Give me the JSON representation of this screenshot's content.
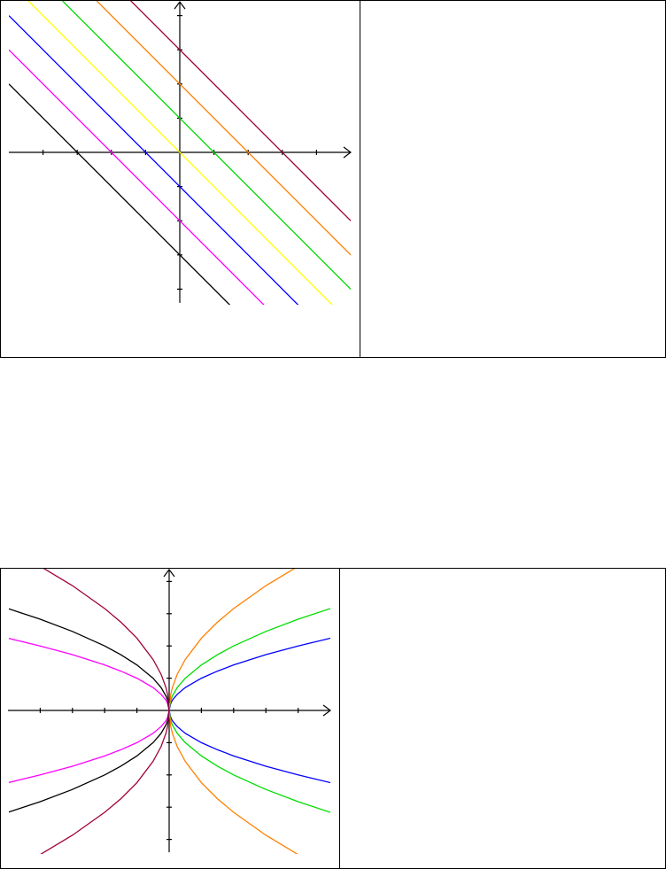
{
  "chart_data": [
    {
      "type": "line",
      "title": "",
      "xlabel": "",
      "ylabel": "",
      "xlim": [
        -5,
        5
      ],
      "ylim": [
        -4.4,
        4.4
      ],
      "xticks": [
        -4,
        -3,
        -2,
        -1,
        1,
        2,
        3,
        4
      ],
      "yticks": [
        -4,
        -3,
        -2,
        -1,
        1,
        2,
        3,
        4
      ],
      "grid": false,
      "axes_arrows": true,
      "series": [
        {
          "color": "#000000",
          "x": [
            -5,
            5
          ],
          "y": [
            2,
            -8
          ]
        },
        {
          "color": "#ff00ff",
          "x": [
            -5,
            5
          ],
          "y": [
            3,
            -7
          ]
        },
        {
          "color": "#0000ff",
          "x": [
            -5,
            5
          ],
          "y": [
            4,
            -6
          ]
        },
        {
          "color": "#ffff00",
          "x": [
            -5,
            5
          ],
          "y": [
            5,
            -5
          ]
        },
        {
          "color": "#00dd00",
          "x": [
            -5,
            5
          ],
          "y": [
            6,
            -4
          ]
        },
        {
          "color": "#ff8000",
          "x": [
            -5,
            5
          ],
          "y": [
            7,
            -3
          ]
        },
        {
          "color": "#a0003c",
          "x": [
            -5,
            5
          ],
          "y": [
            8,
            -2
          ]
        }
      ]
    },
    {
      "type": "line",
      "title": "",
      "xlabel": "",
      "ylabel": "",
      "xlim": [
        -5,
        5
      ],
      "ylim": [
        -4.4,
        4.4
      ],
      "xticks": [
        -4,
        -3,
        -2,
        -1,
        1,
        2,
        3,
        4
      ],
      "yticks": [
        -4,
        -3,
        -2,
        -1,
        1,
        2,
        3,
        4
      ],
      "grid": false,
      "axes_arrows": true,
      "series": [
        {
          "color": "#0000ff",
          "x": [
            0,
            0.05,
            0.1,
            0.25,
            0.5,
            1,
            1.5,
            2,
            3,
            4,
            5
          ],
          "y": [
            0,
            0.22,
            0.32,
            0.5,
            0.71,
            1,
            1.22,
            1.41,
            1.73,
            2,
            2.24
          ]
        },
        {
          "color": "#00dd00",
          "x": [
            0,
            0.05,
            0.1,
            0.25,
            0.5,
            1,
            1.5,
            2,
            3,
            4,
            5
          ],
          "y": [
            0,
            0.32,
            0.45,
            0.71,
            1,
            1.41,
            1.73,
            2,
            2.45,
            2.83,
            3.16
          ]
        },
        {
          "color": "#ff8000",
          "x": [
            0,
            0.05,
            0.1,
            0.25,
            0.5,
            1,
            1.5,
            2,
            3,
            4
          ],
          "y": [
            0,
            0.5,
            0.71,
            1.12,
            1.58,
            2.24,
            2.74,
            3.16,
            3.87,
            4.47
          ]
        },
        {
          "color": "#ff00ff",
          "x": [
            0,
            -0.05,
            -0.1,
            -0.25,
            -0.5,
            -1,
            -1.5,
            -2,
            -3,
            -4,
            -5
          ],
          "y": [
            0,
            0.22,
            0.32,
            0.5,
            0.71,
            1,
            1.22,
            1.41,
            1.73,
            2,
            2.24
          ]
        },
        {
          "color": "#000000",
          "x": [
            0,
            -0.05,
            -0.1,
            -0.25,
            -0.5,
            -1,
            -1.5,
            -2,
            -3,
            -4,
            -5
          ],
          "y": [
            0,
            0.32,
            0.45,
            0.71,
            1,
            1.41,
            1.73,
            2,
            2.45,
            2.83,
            3.16
          ]
        },
        {
          "color": "#a0003c",
          "x": [
            0,
            -0.05,
            -0.1,
            -0.25,
            -0.5,
            -1,
            -1.5,
            -2,
            -3,
            -4
          ],
          "y": [
            0,
            0.5,
            0.71,
            1.12,
            1.58,
            2.24,
            2.74,
            3.16,
            3.87,
            4.47
          ]
        },
        {
          "color": "#0000ff",
          "x": [
            0,
            0.05,
            0.1,
            0.25,
            0.5,
            1,
            1.5,
            2,
            3,
            4,
            5
          ],
          "y": [
            0,
            -0.22,
            -0.32,
            -0.5,
            -0.71,
            -1,
            -1.22,
            -1.41,
            -1.73,
            -2,
            -2.24
          ]
        },
        {
          "color": "#00dd00",
          "x": [
            0,
            0.05,
            0.1,
            0.25,
            0.5,
            1,
            1.5,
            2,
            3,
            4,
            5
          ],
          "y": [
            0,
            -0.32,
            -0.45,
            -0.71,
            -1,
            -1.41,
            -1.73,
            -2,
            -2.45,
            -2.83,
            -3.16
          ]
        },
        {
          "color": "#ff8000",
          "x": [
            0,
            0.05,
            0.1,
            0.25,
            0.5,
            1,
            1.5,
            2,
            3,
            4
          ],
          "y": [
            0,
            -0.5,
            -0.71,
            -1.12,
            -1.58,
            -2.24,
            -2.74,
            -3.16,
            -3.87,
            -4.47
          ]
        },
        {
          "color": "#ff00ff",
          "x": [
            0,
            -0.05,
            -0.1,
            -0.25,
            -0.5,
            -1,
            -1.5,
            -2,
            -3,
            -4,
            -5
          ],
          "y": [
            0,
            -0.22,
            -0.32,
            -0.5,
            -0.71,
            -1,
            -1.22,
            -1.41,
            -1.73,
            -2,
            -2.24
          ]
        },
        {
          "color": "#000000",
          "x": [
            0,
            -0.05,
            -0.1,
            -0.25,
            -0.5,
            -1,
            -1.5,
            -2,
            -3,
            -4,
            -5
          ],
          "y": [
            0,
            -0.32,
            -0.45,
            -0.71,
            -1,
            -1.41,
            -1.73,
            -2,
            -2.45,
            -2.83,
            -3.16
          ]
        },
        {
          "color": "#a0003c",
          "x": [
            0,
            -0.05,
            -0.1,
            -0.25,
            -0.5,
            -1,
            -1.5,
            -2,
            -3,
            -4
          ],
          "y": [
            0,
            -0.5,
            -0.71,
            -1.12,
            -1.58,
            -2.24,
            -2.74,
            -3.16,
            -3.87,
            -4.47
          ]
        }
      ]
    }
  ]
}
